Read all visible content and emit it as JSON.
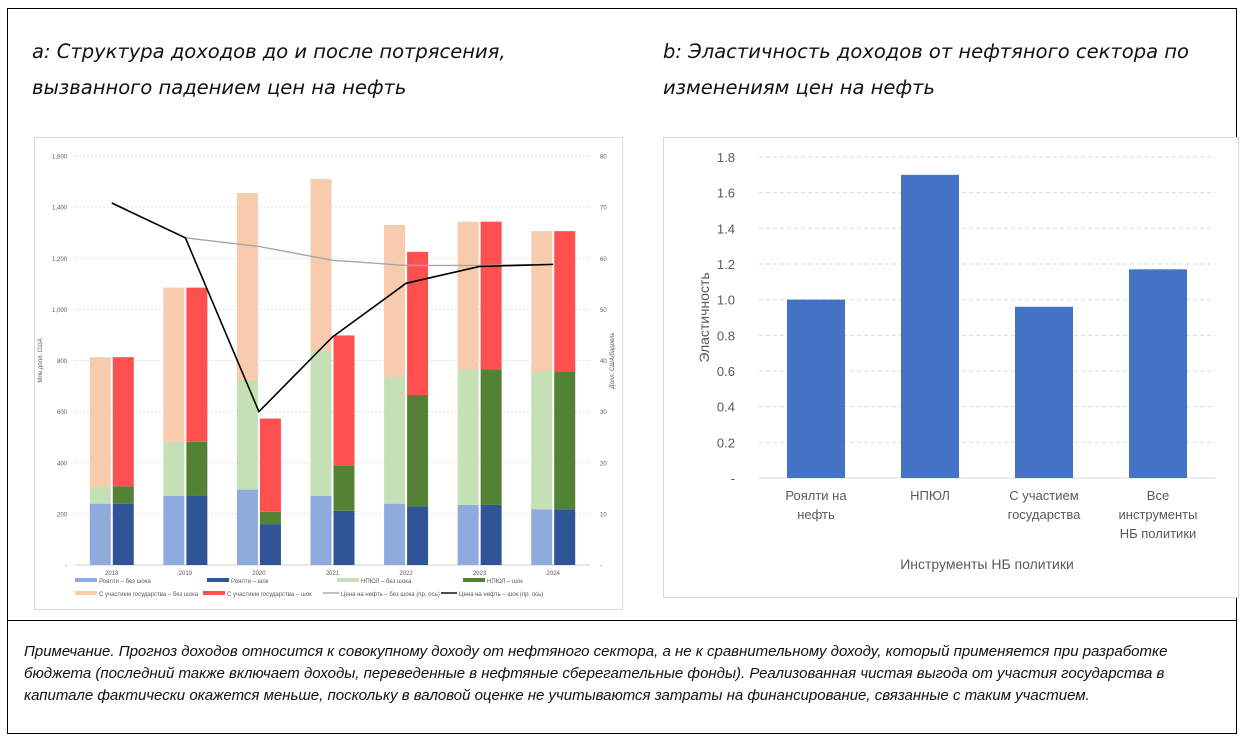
{
  "panel_a": {
    "title_line1": "a: Структура доходов до и после потрясения,",
    "title_line2": "вызванного падением цен на нефть"
  },
  "panel_b": {
    "title_line1": "b: Эластичность доходов от нефтяного сектора по",
    "title_line2": "изменениям цен на нефть"
  },
  "note": "Примечание. Прогноз доходов относится к совокупному доходу от нефтяного сектора, а не к сравнительному доходу, который применяется при разработке бюджета (последний также включает доходы, переведенные в нефтяные сберегательные фонды). Реализованная чистая выгода от участия государства в капитале фактически окажется меньше, поскольку в валовой оценке не учитываются затраты на финансирование, связанные с таким участием.",
  "chart_data": [
    {
      "type": "bar",
      "stacked": true,
      "categories": [
        "2018",
        "2019",
        "2020",
        "2021",
        "2022",
        "2023",
        "2024"
      ],
      "ylabel": "Млн долл. США",
      "y2label": "Долл. США/баррель",
      "ylim": [
        0,
        1600
      ],
      "y2lim": [
        0,
        80
      ],
      "yticks": [
        "-",
        "200",
        "400",
        "600",
        "800",
        "1,000",
        "1,200",
        "1,400",
        "1,600"
      ],
      "y2ticks": [
        "-",
        "10",
        "20",
        "30",
        "40",
        "50",
        "60",
        "70",
        "80"
      ],
      "grid": true,
      "legend_position": "bottom",
      "bar_series": [
        {
          "name": "Роялти – без шока",
          "color": "#8faadc",
          "group": "no_shock",
          "values": [
            240,
            270,
            295,
            270,
            240,
            235,
            218
          ]
        },
        {
          "name": "Роялти – шок",
          "color": "#2f5597",
          "group": "shock",
          "values": [
            240,
            270,
            160,
            212,
            230,
            235,
            218
          ]
        },
        {
          "name": "НПЮЛ – без шока",
          "color": "#c5e0b4",
          "group": "no_shock",
          "values": [
            68,
            212,
            430,
            570,
            495,
            530,
            537
          ]
        },
        {
          "name": "НПЮЛ – шок",
          "color": "#548235",
          "group": "shock",
          "values": [
            68,
            212,
            48,
            178,
            435,
            530,
            537
          ]
        },
        {
          "name": "С участием государства – без шока",
          "color": "#f8cbad",
          "group": "no_shock",
          "values": [
            505,
            603,
            730,
            670,
            595,
            578,
            551
          ]
        },
        {
          "name": "С участием государства – шок",
          "color": "#ff5050",
          "group": "shock",
          "values": [
            505,
            603,
            365,
            508,
            560,
            578,
            551
          ]
        }
      ],
      "line_series": [
        {
          "name": "Цена на нефть – без шока (пр. ось)",
          "color": "#a6a6a6",
          "values": [
            70.8,
            64,
            62.3,
            59.6,
            58.6,
            58.6,
            58.8
          ]
        },
        {
          "name": "Цена на нефть – шок (пр. ось)",
          "color": "#000000",
          "values": [
            70.8,
            64,
            30,
            44.6,
            55.1,
            58.4,
            58.8
          ]
        }
      ]
    },
    {
      "type": "bar",
      "categories": [
        [
          "Роялти на",
          "нефть"
        ],
        [
          "НПЮЛ"
        ],
        [
          "С участием",
          "государства"
        ],
        [
          "Все",
          "инструменты",
          "НБ политики"
        ]
      ],
      "values": [
        1.0,
        1.7,
        0.96,
        1.17
      ],
      "xlabel": "Инструменты НБ политики",
      "ylabel": "Эластичность",
      "ylim": [
        0,
        1.8
      ],
      "yticks": [
        "-",
        "0.2",
        "0.4",
        "0.6",
        "0.8",
        "1.0",
        "1.2",
        "1.4",
        "1.6",
        "1.8"
      ],
      "bar_color": "#4472c4",
      "grid": true
    }
  ]
}
